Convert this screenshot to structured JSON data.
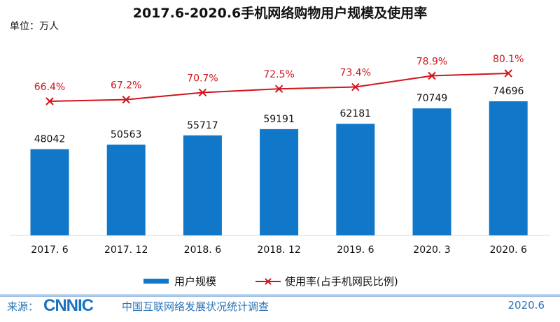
{
  "chart_data": {
    "type": "bar+line",
    "title": "2017.6-2020.6手机网络购物用户规模及使用率",
    "unit_label": "单位：万人",
    "categories": [
      "2017. 6",
      "2017. 12",
      "2018. 6",
      "2018. 12",
      "2019. 6",
      "2020. 3",
      "2020. 6"
    ],
    "series": [
      {
        "name": "用户规模",
        "type": "bar",
        "color": "#1177c8",
        "values": [
          48042,
          50563,
          55717,
          59191,
          62181,
          70749,
          74696
        ]
      },
      {
        "name": "使用率(占手机网民比例)",
        "type": "line",
        "color": "#d0141c",
        "values": [
          66.4,
          67.2,
          70.7,
          72.5,
          73.4,
          78.9,
          80.1
        ],
        "labels": [
          "66.4%",
          "67.2%",
          "70.7%",
          "72.5%",
          "73.4%",
          "78.9%",
          "80.1%"
        ]
      }
    ],
    "legend": "bottom-center"
  },
  "footer": {
    "source_label": "来源：",
    "logo": "CNNIC",
    "org": "中国互联网络发展状况统计调查",
    "date": "2020.6"
  },
  "watermark": "CNNIC"
}
